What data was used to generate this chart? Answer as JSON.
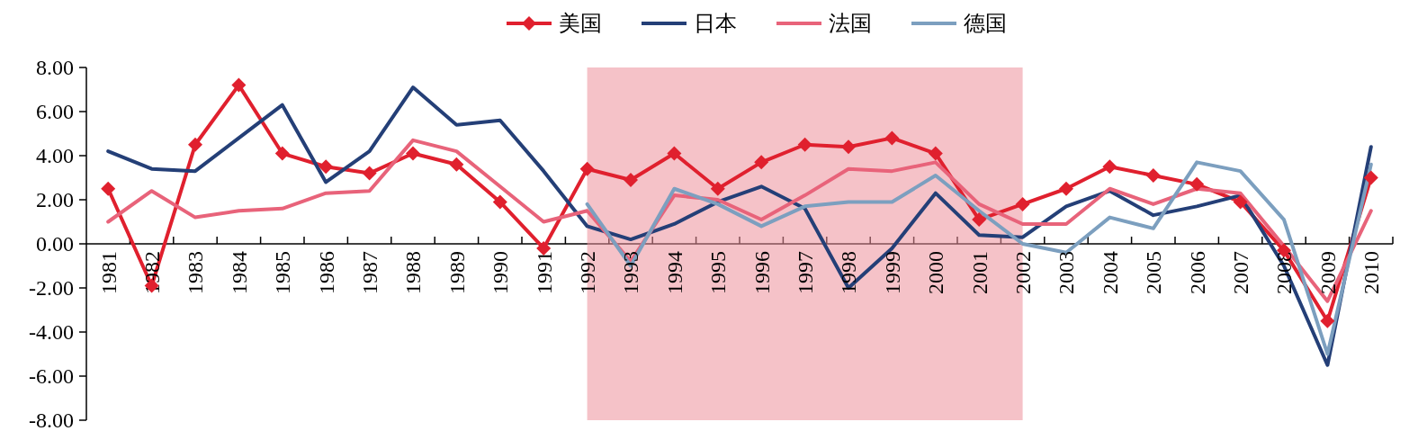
{
  "chart_data": {
    "type": "line",
    "categories": [
      "1981",
      "1982",
      "1983",
      "1984",
      "1985",
      "1986",
      "1987",
      "1988",
      "1989",
      "1990",
      "1991",
      "1992",
      "1993",
      "1994",
      "1995",
      "1996",
      "1997",
      "1998",
      "1999",
      "2000",
      "2001",
      "2002",
      "2003",
      "2004",
      "2005",
      "2006",
      "2007",
      "2008",
      "2009",
      "2010"
    ],
    "series": [
      {
        "name": "美国",
        "color": "#e0202e",
        "marker": "diamond",
        "values": [
          2.5,
          -1.9,
          4.5,
          7.2,
          4.1,
          3.5,
          3.2,
          4.1,
          3.6,
          1.9,
          -0.2,
          3.4,
          2.9,
          4.1,
          2.5,
          3.7,
          4.5,
          4.4,
          4.8,
          4.1,
          1.1,
          1.8,
          2.5,
          3.5,
          3.1,
          2.7,
          1.9,
          -0.3,
          -3.5,
          3.0
        ]
      },
      {
        "name": "日本",
        "color": "#243f77",
        "values": [
          4.2,
          3.4,
          3.3,
          4.8,
          6.3,
          2.8,
          4.2,
          7.1,
          5.4,
          5.6,
          3.3,
          0.8,
          0.2,
          0.9,
          1.9,
          2.6,
          1.6,
          -2.0,
          -0.2,
          2.3,
          0.4,
          0.3,
          1.7,
          2.4,
          1.3,
          1.7,
          2.2,
          -1.0,
          -5.5,
          4.4
        ]
      },
      {
        "name": "法国",
        "color": "#e8637a",
        "values": [
          1.0,
          2.4,
          1.2,
          1.5,
          1.6,
          2.3,
          2.4,
          4.7,
          4.2,
          2.6,
          1.0,
          1.5,
          -0.8,
          2.2,
          2.0,
          1.1,
          2.2,
          3.4,
          3.3,
          3.7,
          1.8,
          0.9,
          0.9,
          2.5,
          1.8,
          2.5,
          2.3,
          -0.1,
          -2.6,
          1.5
        ]
      },
      {
        "name": "德国",
        "color": "#7c9fbf",
        "values": [
          null,
          null,
          null,
          null,
          null,
          null,
          null,
          null,
          null,
          null,
          null,
          1.8,
          -1.0,
          2.5,
          1.8,
          0.8,
          1.7,
          1.9,
          1.9,
          3.1,
          1.5,
          0.0,
          -0.4,
          1.2,
          0.7,
          3.7,
          3.3,
          1.1,
          -5.0,
          3.6
        ]
      }
    ],
    "ylim": [
      -8,
      8
    ],
    "yticks": [
      {
        "value": -8,
        "label": "-8.00"
      },
      {
        "value": -6,
        "label": "-6.00"
      },
      {
        "value": -4,
        "label": "-4.00"
      },
      {
        "value": -2,
        "label": "-2.00"
      },
      {
        "value": 0,
        "label": "0.00"
      },
      {
        "value": 2,
        "label": "2.00"
      },
      {
        "value": 4,
        "label": "4.00"
      },
      {
        "value": 6,
        "label": "6.00"
      },
      {
        "value": 8,
        "label": "8.00"
      }
    ],
    "bands": [
      {
        "axis": "x",
        "from": "1992",
        "to": "2002",
        "color": "#ec8f9b"
      }
    ],
    "legend": "top",
    "line_style": "solid",
    "grid": false
  }
}
